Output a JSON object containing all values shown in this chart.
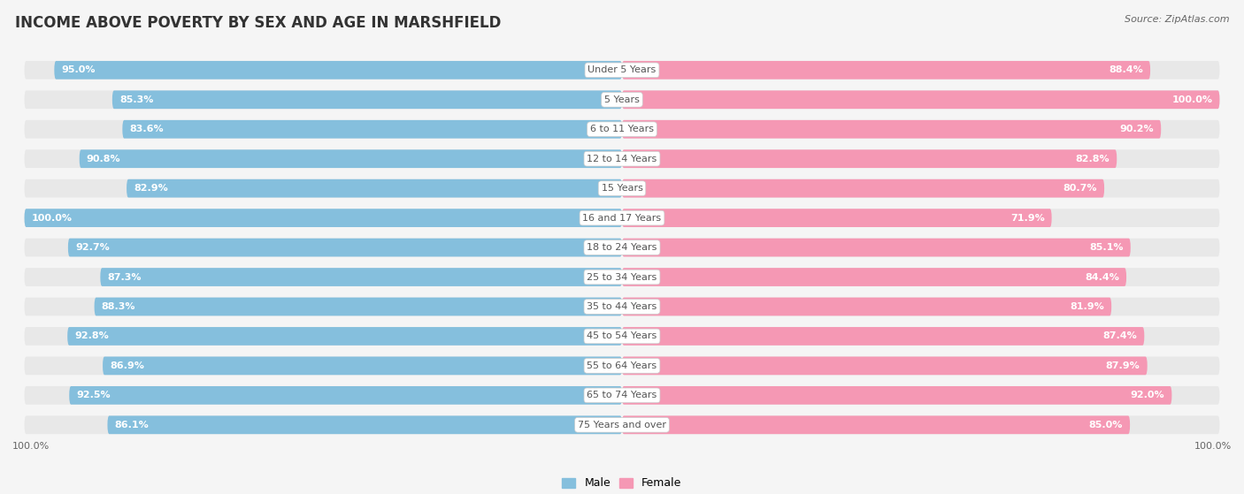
{
  "title": "INCOME ABOVE POVERTY BY SEX AND AGE IN MARSHFIELD",
  "source": "Source: ZipAtlas.com",
  "categories": [
    "Under 5 Years",
    "5 Years",
    "6 to 11 Years",
    "12 to 14 Years",
    "15 Years",
    "16 and 17 Years",
    "18 to 24 Years",
    "25 to 34 Years",
    "35 to 44 Years",
    "45 to 54 Years",
    "55 to 64 Years",
    "65 to 74 Years",
    "75 Years and over"
  ],
  "male_values": [
    95.0,
    85.3,
    83.6,
    90.8,
    82.9,
    100.0,
    92.7,
    87.3,
    88.3,
    92.8,
    86.9,
    92.5,
    86.1
  ],
  "female_values": [
    88.4,
    100.0,
    90.2,
    82.8,
    80.7,
    71.9,
    85.1,
    84.4,
    81.9,
    87.4,
    87.9,
    92.0,
    85.0
  ],
  "male_color": "#85bfdd",
  "female_color": "#f598b4",
  "bg_bar_color": "#e8e8e8",
  "background_color": "#f5f5f5",
  "title_fontsize": 12,
  "label_fontsize": 8,
  "value_fontsize": 8,
  "legend_fontsize": 9,
  "source_fontsize": 8,
  "max_value": 100.0
}
